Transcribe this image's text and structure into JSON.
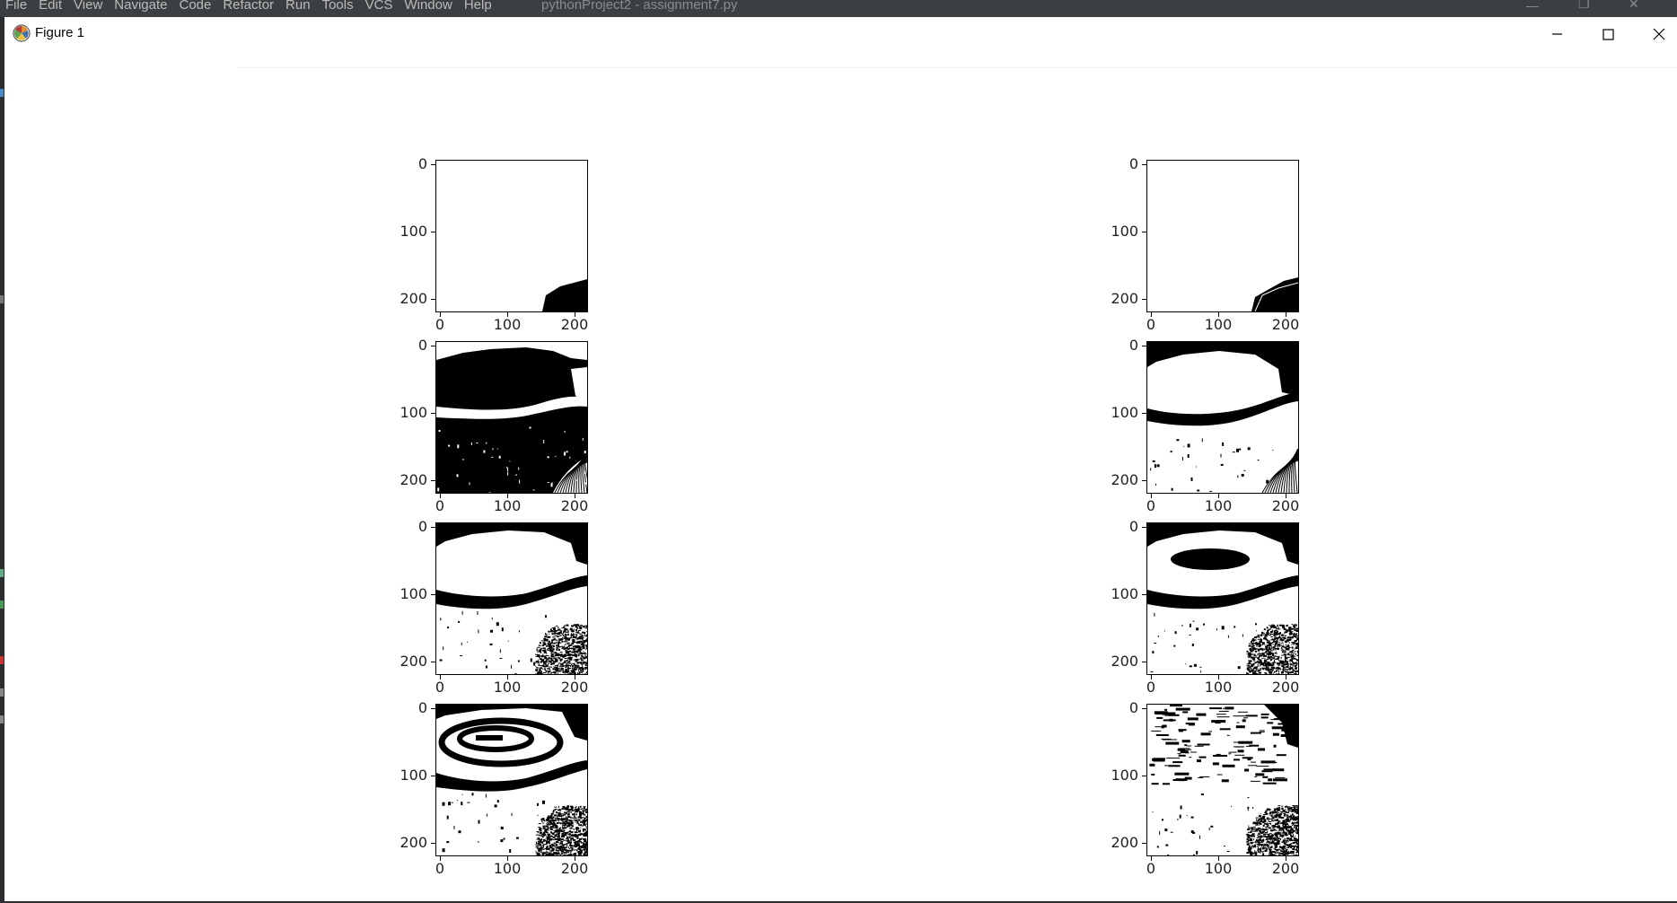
{
  "ide": {
    "menu": [
      "File",
      "Edit",
      "View",
      "Navigate",
      "Code",
      "Refactor",
      "Run",
      "Tools",
      "VCS",
      "Window",
      "Help"
    ],
    "title": "pythonProject2 - assignment7.py"
  },
  "figure_window": {
    "title": "Figure 1",
    "icons": {
      "app": "matplotlib-icon",
      "minimize": "minimize-icon",
      "maximize": "maximize-icon",
      "close": "close-icon"
    }
  },
  "chart_data": {
    "type": "image-grid",
    "rows": 4,
    "cols": 2,
    "x_ticks": [
      "0",
      "100",
      "200"
    ],
    "y_ticks": [
      "0",
      "100",
      "200"
    ],
    "panels": [
      {
        "row": 1,
        "col": 1
      },
      {
        "row": 1,
        "col": 2
      },
      {
        "row": 2,
        "col": 1
      },
      {
        "row": 2,
        "col": 2
      },
      {
        "row": 3,
        "col": 1
      },
      {
        "row": 3,
        "col": 2
      },
      {
        "row": 4,
        "col": 1
      },
      {
        "row": 4,
        "col": 2
      }
    ]
  }
}
